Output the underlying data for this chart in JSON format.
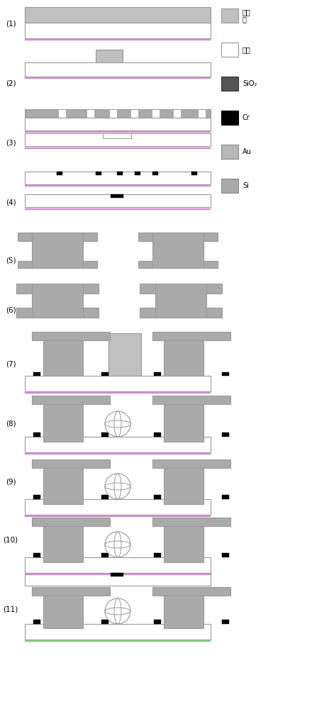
{
  "fig_width": 4.4,
  "fig_height": 10.0,
  "dpi": 100,
  "colors": {
    "photoresist": "#c0c0c0",
    "glass": "#ffffff",
    "SiO2": "#555555",
    "Cr": "#000000",
    "Au": "#b8b8b8",
    "Si": "#aaaaaa",
    "si_border": "#d090d0",
    "green_border": "#80cc80",
    "gray_outline": "#999999"
  },
  "step_labels": [
    "(1)",
    "(2)",
    "(3)",
    "(4)",
    "(5)",
    "(6)",
    "(7)",
    "(8)",
    "(9)",
    "(10)",
    "(11)"
  ],
  "legend_items": [
    {
      "label": "光刻\n胶",
      "color": "#c0c0c0",
      "ec": "#999999"
    },
    {
      "label": "玻璃",
      "color": "#ffffff",
      "ec": "#999999"
    },
    {
      "label": "SiO₂",
      "color": "#555555",
      "ec": "#333333"
    },
    {
      "label": "Cr",
      "color": "#000000",
      "ec": "#000000"
    },
    {
      "label": "Au",
      "color": "#b8b8b8",
      "ec": "#888888"
    },
    {
      "label": "Si",
      "color": "#aaaaaa",
      "ec": "#888888"
    }
  ]
}
